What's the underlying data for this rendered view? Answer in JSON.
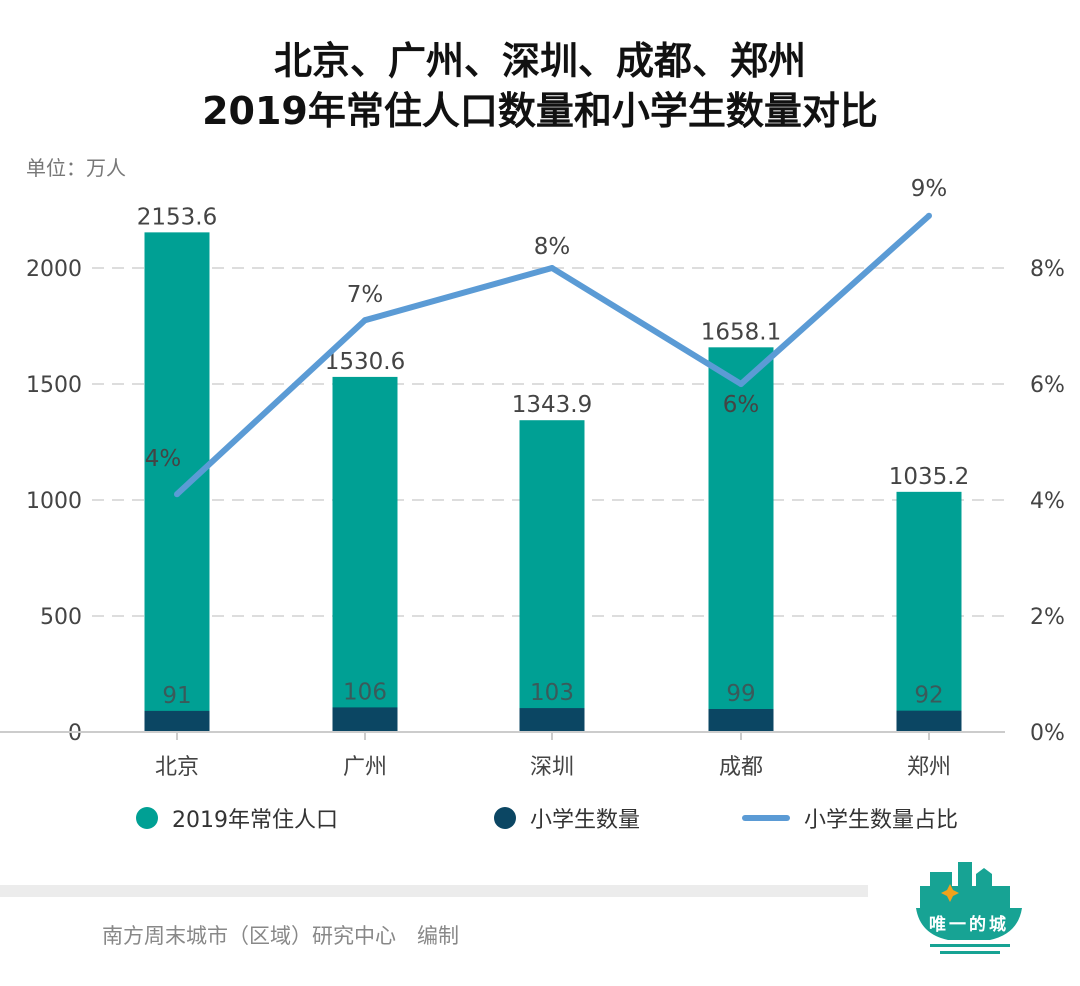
{
  "title_line1": "北京、广州、深圳、成都、郑州",
  "title_line2": "2019年常住人口数量和小学生数量对比",
  "unit_label": "单位：万人",
  "source": "南方周末城市（区域）研究中心　编制",
  "logo_text": "唯一的城",
  "colors": {
    "population": "#00a094",
    "students": "#0b4663",
    "ratio": "#5b9bd5"
  },
  "chart_data": {
    "type": "bar+line",
    "categories": [
      "北京",
      "广州",
      "深圳",
      "成都",
      "郑州"
    ],
    "series": [
      {
        "name": "2019年常住人口",
        "type": "bar",
        "axis": "left",
        "values": [
          2153.6,
          1530.6,
          1343.9,
          1658.1,
          1035.2
        ],
        "labels": [
          "2153.6",
          "1530.6",
          "1343.9",
          "1658.1",
          "1035.2"
        ]
      },
      {
        "name": "小学生数量",
        "type": "bar",
        "axis": "left",
        "values": [
          91,
          106,
          103,
          99,
          92
        ],
        "labels": [
          "91",
          "106",
          "103",
          "99",
          "92"
        ]
      },
      {
        "name": "小学生数量占比",
        "type": "line",
        "axis": "right",
        "values": [
          4.1,
          7.1,
          8.0,
          6.0,
          8.9
        ],
        "labels": [
          "4%",
          "7%",
          "8%",
          "6%",
          "9%"
        ]
      }
    ],
    "left_axis": {
      "ylim": [
        0,
        2000
      ],
      "ticks": [
        "0",
        "500",
        "1000",
        "1500",
        "2000"
      ]
    },
    "right_axis": {
      "ylim": [
        0,
        8
      ],
      "ticks": [
        "0%",
        "2%",
        "4%",
        "6%",
        "8%"
      ]
    },
    "grid": true,
    "legend": "bottom"
  }
}
